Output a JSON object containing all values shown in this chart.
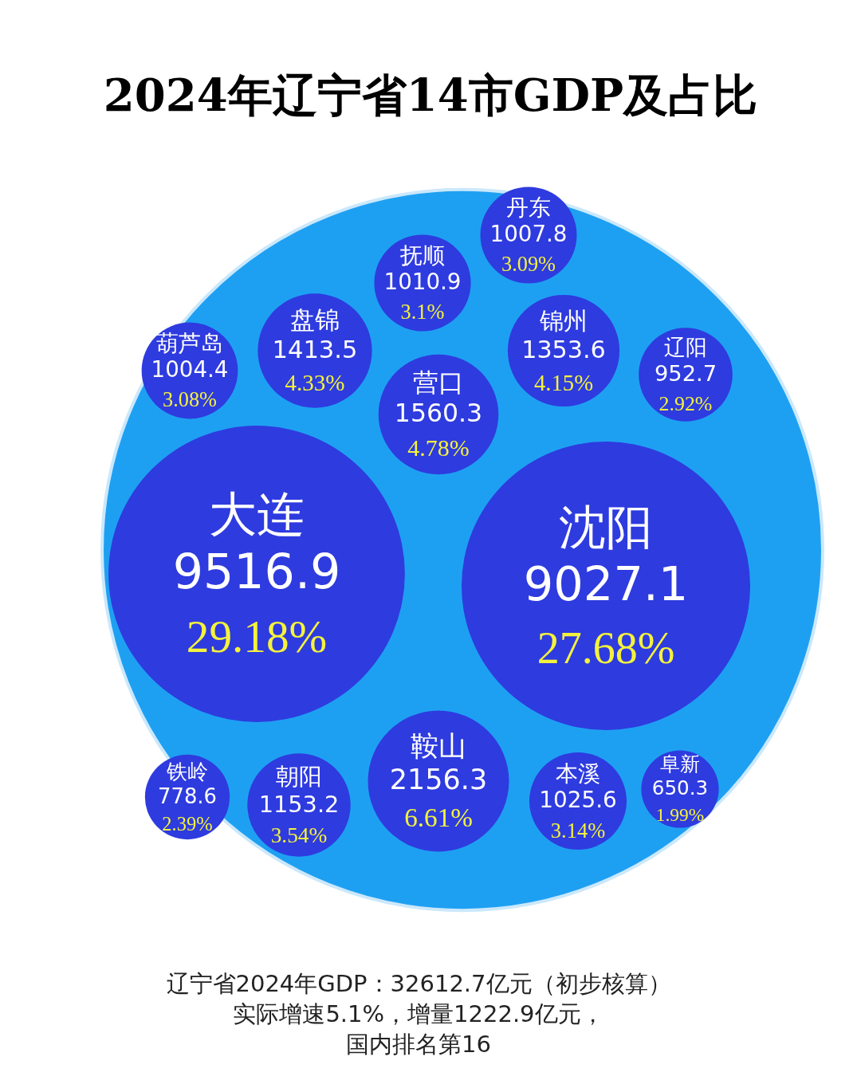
{
  "chart_data": {
    "type": "other",
    "title": "2024年辽宁省14市GDP及占比",
    "categories": [
      "大连",
      "沈阳",
      "鞍山",
      "营口",
      "盘锦",
      "锦州",
      "本溪",
      "朝阳",
      "抚顺",
      "丹东",
      "葫芦岛",
      "辽阳",
      "铁岭",
      "阜新"
    ],
    "values": [
      9516.9,
      9027.1,
      2156.3,
      1560.3,
      1413.5,
      1353.6,
      1025.6,
      1153.2,
      1010.9,
      1007.8,
      1004.4,
      952.7,
      778.6,
      650.3
    ],
    "color": "#2e3bdf",
    "data_labels": true,
    "annotations": [
      {
        "text": "29.18%",
        "x": "大连"
      },
      {
        "text": "27.68%",
        "x": "沈阳"
      },
      {
        "text": "6.61%",
        "x": "鞍山"
      },
      {
        "text": "4.78%",
        "x": "营口"
      },
      {
        "text": "4.33%",
        "x": "盘锦"
      },
      {
        "text": "4.15%",
        "x": "锦州"
      },
      {
        "text": "3.14%",
        "x": "本溪"
      },
      {
        "text": "3.54%",
        "x": "朝阳"
      },
      {
        "text": "3.1%",
        "x": "抚顺"
      },
      {
        "text": "3.09%",
        "x": "丹东"
      },
      {
        "text": "3.08%",
        "x": "葫芦岛"
      },
      {
        "text": "2.92%",
        "x": "辽阳"
      },
      {
        "text": "2.39%",
        "x": "铁岭"
      },
      {
        "text": "1.99%",
        "x": "阜新"
      },
      "辽宁省2024年GDP：32612.7亿元（初步核算）",
      "实际增速5.1%，增量1222.9亿元，",
      "国内排名第16"
    ]
  }
}
